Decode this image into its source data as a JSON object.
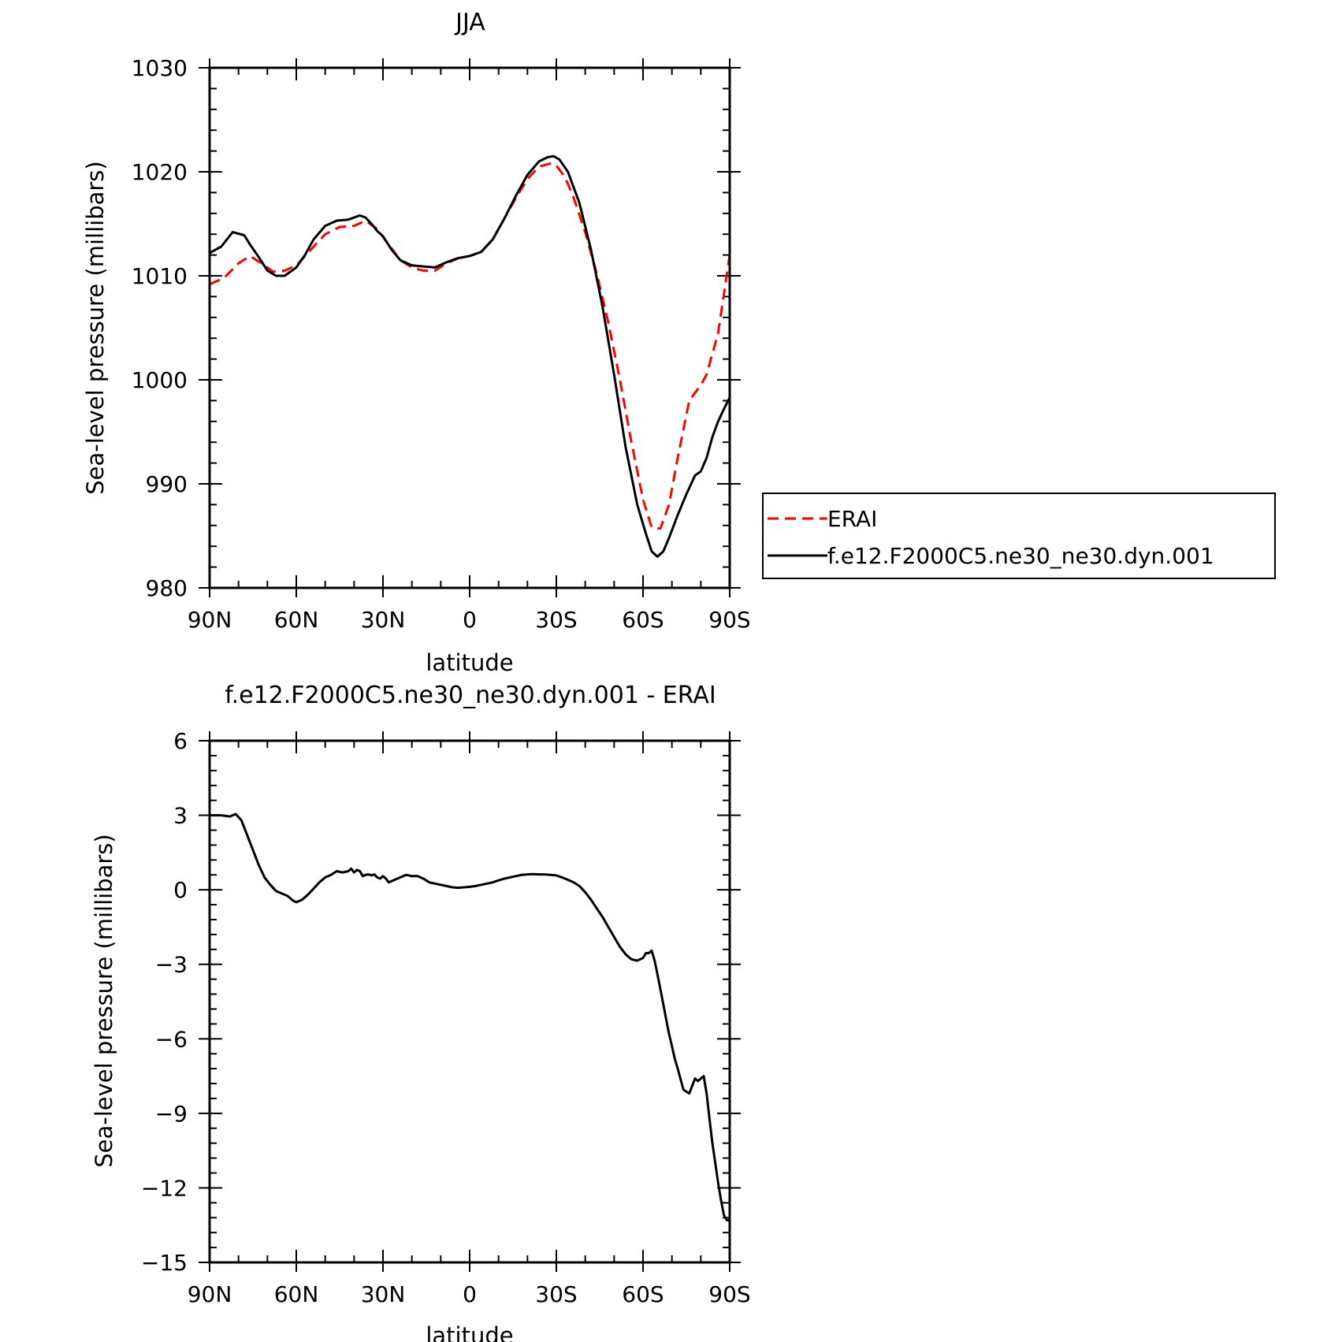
{
  "chart_data": [
    {
      "type": "line",
      "title": "JJA",
      "xlabel": "latitude",
      "ylabel": "Sea-level pressure (millibars)",
      "xlim": [
        90,
        -90
      ],
      "ylim": [
        980,
        1030
      ],
      "x_ticks": [
        90,
        60,
        30,
        0,
        -30,
        -60,
        -90
      ],
      "x_tick_labels": [
        "90N",
        "60N",
        "30N",
        "0",
        "30S",
        "60S",
        "90S"
      ],
      "y_ticks": [
        980,
        990,
        1000,
        1010,
        1020,
        1030
      ],
      "y_tick_labels": [
        "980",
        "990",
        "1000",
        "1010",
        "1020",
        "1030"
      ],
      "legend_position": "right",
      "series": [
        {
          "name": "ERAI",
          "color": "#ff0000",
          "dash": "dashed",
          "x": [
            90,
            85,
            80,
            76,
            72,
            68,
            64,
            60,
            55,
            50,
            45,
            40,
            36,
            32,
            28,
            24,
            20,
            16,
            12,
            8,
            4,
            0,
            -4,
            -8,
            -12,
            -16,
            -20,
            -24,
            -28,
            -30,
            -33,
            -36,
            -40,
            -44,
            -48,
            -52,
            -56,
            -60,
            -63,
            -66,
            -69,
            -72,
            -76,
            -80,
            -82,
            -86,
            -90
          ],
          "y": [
            1009.2,
            1009.8,
            1011.2,
            1011.9,
            1011.2,
            1010.4,
            1010.5,
            1011.0,
            1012.5,
            1014.0,
            1014.7,
            1014.8,
            1015.3,
            1014.5,
            1013.0,
            1011.5,
            1010.8,
            1010.5,
            1010.5,
            1011.2,
            1011.7,
            1011.9,
            1012.3,
            1013.5,
            1015.5,
            1017.5,
            1019.3,
            1020.5,
            1020.8,
            1020.6,
            1019.5,
            1017.5,
            1014.2,
            1010.2,
            1005.5,
            1000.0,
            994.0,
            988.5,
            985.8,
            985.7,
            988.0,
            992.5,
            998.0,
            999.5,
            1000.5,
            1004.5,
            1012.0
          ]
        },
        {
          "name": "f.e12.F2000C5.ne30_ne30.dyn.001",
          "color": "#000000",
          "dash": "solid",
          "x": [
            90,
            86,
            82,
            78,
            76,
            73,
            70,
            67,
            64,
            60,
            57,
            54,
            50,
            46,
            42,
            38,
            36,
            34,
            32,
            30,
            27,
            24,
            20,
            16,
            12,
            8,
            4,
            0,
            -4,
            -8,
            -12,
            -16,
            -20,
            -24,
            -27,
            -29,
            -31,
            -34,
            -38,
            -42,
            -46,
            -50,
            -54,
            -58,
            -61,
            -63,
            -65,
            -67,
            -69,
            -72,
            -75,
            -78,
            -80,
            -82,
            -84,
            -86,
            -88,
            -90
          ],
          "y": [
            1012.2,
            1012.8,
            1014.2,
            1013.9,
            1013.0,
            1011.8,
            1010.5,
            1010.0,
            1010.0,
            1010.8,
            1012.0,
            1013.5,
            1014.8,
            1015.3,
            1015.4,
            1015.8,
            1015.6,
            1015.0,
            1014.3,
            1013.8,
            1012.5,
            1011.5,
            1011.0,
            1010.9,
            1010.8,
            1011.3,
            1011.7,
            1011.9,
            1012.3,
            1013.5,
            1015.5,
            1017.7,
            1019.7,
            1021.0,
            1021.4,
            1021.5,
            1021.2,
            1020.0,
            1017.0,
            1012.5,
            1007.0,
            1000.5,
            993.5,
            988.0,
            985.2,
            983.5,
            983.0,
            983.5,
            984.8,
            987.0,
            989.0,
            990.8,
            991.2,
            992.5,
            994.5,
            996.0,
            997.2,
            998.3
          ]
        }
      ]
    },
    {
      "type": "line",
      "title": "f.e12.F2000C5.ne30_ne30.dyn.001 - ERAI",
      "xlabel": "latitude",
      "ylabel": "Sea-level pressure (millibars)",
      "xlim": [
        90,
        -90
      ],
      "ylim": [
        -15,
        6
      ],
      "x_ticks": [
        90,
        60,
        30,
        0,
        -30,
        -60,
        -90
      ],
      "x_tick_labels": [
        "90N",
        "60N",
        "30N",
        "0",
        "30S",
        "60S",
        "90S"
      ],
      "y_ticks": [
        -15,
        -12,
        -9,
        -6,
        -3,
        0,
        3,
        6
      ],
      "y_tick_labels": [
        "−15",
        "−12",
        "−9",
        "−6",
        "−3",
        "0",
        "3",
        "6"
      ],
      "series": [
        {
          "color": "#000000",
          "dash": "solid",
          "x": [
            90,
            86,
            83,
            81,
            79,
            77,
            75,
            73,
            71,
            69,
            67,
            65,
            63,
            61,
            60,
            58,
            56,
            54,
            52,
            50,
            48,
            46,
            44,
            42,
            41,
            40,
            39,
            38,
            37,
            36,
            35,
            34,
            33,
            32,
            31,
            30,
            29,
            28,
            27,
            26,
            25,
            24,
            22,
            20,
            18,
            16,
            14,
            12,
            10,
            8,
            6,
            4,
            2,
            0,
            -2,
            -4,
            -6,
            -8,
            -10,
            -12,
            -14,
            -16,
            -18,
            -20,
            -22,
            -24,
            -26,
            -28,
            -30,
            -32,
            -34,
            -36,
            -38,
            -40,
            -42,
            -44,
            -46,
            -48,
            -50,
            -52,
            -54,
            -56,
            -58,
            -60,
            -61,
            -62,
            -63,
            -64,
            -65,
            -66,
            -67,
            -68,
            -69,
            -70,
            -71,
            -72,
            -74,
            -76,
            -78,
            -79,
            -80,
            -81,
            -82,
            -83,
            -84,
            -85,
            -86,
            -87,
            -88,
            -89,
            -90
          ],
          "y": [
            3.0,
            3.0,
            2.95,
            3.05,
            2.8,
            2.2,
            1.6,
            1.0,
            0.5,
            0.2,
            -0.05,
            -0.15,
            -0.25,
            -0.45,
            -0.5,
            -0.4,
            -0.2,
            0.05,
            0.3,
            0.5,
            0.6,
            0.75,
            0.7,
            0.75,
            0.85,
            0.7,
            0.8,
            0.75,
            0.55,
            0.6,
            0.62,
            0.58,
            0.62,
            0.5,
            0.45,
            0.55,
            0.45,
            0.3,
            0.35,
            0.4,
            0.45,
            0.5,
            0.6,
            0.55,
            0.55,
            0.45,
            0.3,
            0.25,
            0.2,
            0.15,
            0.1,
            0.08,
            0.1,
            0.12,
            0.15,
            0.2,
            0.25,
            0.3,
            0.38,
            0.45,
            0.5,
            0.55,
            0.6,
            0.62,
            0.63,
            0.62,
            0.62,
            0.6,
            0.58,
            0.5,
            0.4,
            0.3,
            0.15,
            -0.1,
            -0.4,
            -0.75,
            -1.1,
            -1.5,
            -1.9,
            -2.3,
            -2.6,
            -2.8,
            -2.85,
            -2.75,
            -2.55,
            -2.55,
            -2.45,
            -2.85,
            -3.4,
            -4.0,
            -4.6,
            -5.2,
            -5.8,
            -6.3,
            -6.8,
            -7.2,
            -8.05,
            -8.2,
            -7.6,
            -7.7,
            -7.6,
            -7.5,
            -8.2,
            -9.2,
            -10.2,
            -11.0,
            -11.8,
            -12.5,
            -13.1,
            -13.3,
            -13.3
          ]
        }
      ]
    }
  ]
}
